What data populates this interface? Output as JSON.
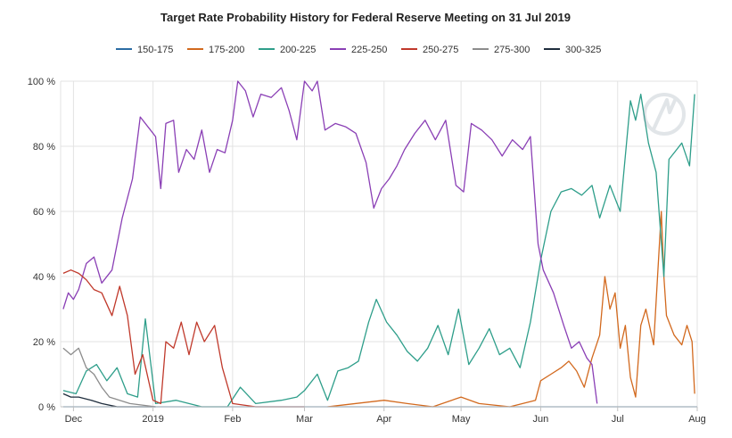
{
  "chart_data": {
    "type": "line",
    "title": "Target Rate Probability History for Federal Reserve Meeting on 31 Jul 2019",
    "xlabel": "",
    "ylabel": "",
    "ylim": [
      0,
      100
    ],
    "y_ticks": [
      "0 %",
      "20 %",
      "40 %",
      "60 %",
      "80 %",
      "100 %"
    ],
    "y_tick_values": [
      0,
      20,
      40,
      60,
      80,
      100
    ],
    "xlim": [
      "2018-11-26",
      "2019-08-01"
    ],
    "x_ticks": [
      {
        "label": "Dec",
        "date": "2018-12-01"
      },
      {
        "label": "2019",
        "date": "2019-01-01"
      },
      {
        "label": "Feb",
        "date": "2019-02-01"
      },
      {
        "label": "Mar",
        "date": "2019-03-01"
      },
      {
        "label": "Apr",
        "date": "2019-04-01"
      },
      {
        "label": "May",
        "date": "2019-05-01"
      },
      {
        "label": "Jun",
        "date": "2019-06-01"
      },
      {
        "label": "Jul",
        "date": "2019-07-01"
      },
      {
        "label": "Aug",
        "date": "2019-08-01"
      }
    ],
    "legend_position": "top",
    "grid": true,
    "series": [
      {
        "name": "150-175",
        "color": "#2b6ca3",
        "points": [
          [
            "2018-11-27",
            0
          ],
          [
            "2019-03-01",
            0
          ],
          [
            "2019-06-20",
            0
          ],
          [
            "2019-08-01",
            0
          ]
        ]
      },
      {
        "name": "175-200",
        "color": "#d2691e",
        "points": [
          [
            "2019-03-10",
            0
          ],
          [
            "2019-04-01",
            2
          ],
          [
            "2019-04-10",
            1
          ],
          [
            "2019-04-20",
            0
          ],
          [
            "2019-05-01",
            3
          ],
          [
            "2019-05-08",
            1
          ],
          [
            "2019-05-20",
            0
          ],
          [
            "2019-05-30",
            2
          ],
          [
            "2019-06-01",
            8
          ],
          [
            "2019-06-05",
            10
          ],
          [
            "2019-06-09",
            12
          ],
          [
            "2019-06-12",
            14
          ],
          [
            "2019-06-15",
            11
          ],
          [
            "2019-06-18",
            6
          ],
          [
            "2019-06-21",
            15
          ],
          [
            "2019-06-24",
            22
          ],
          [
            "2019-06-26",
            40
          ],
          [
            "2019-06-28",
            30
          ],
          [
            "2019-06-30",
            35
          ],
          [
            "2019-07-02",
            18
          ],
          [
            "2019-07-04",
            25
          ],
          [
            "2019-07-06",
            9
          ],
          [
            "2019-07-08",
            3
          ],
          [
            "2019-07-10",
            25
          ],
          [
            "2019-07-12",
            30
          ],
          [
            "2019-07-15",
            19
          ],
          [
            "2019-07-18",
            60
          ],
          [
            "2019-07-19",
            40
          ],
          [
            "2019-07-20",
            28
          ],
          [
            "2019-07-23",
            22
          ],
          [
            "2019-07-26",
            19
          ],
          [
            "2019-07-28",
            25
          ],
          [
            "2019-07-30",
            20
          ],
          [
            "2019-07-31",
            4
          ]
        ]
      },
      {
        "name": "200-225",
        "color": "#2e9e8a",
        "points": [
          [
            "2018-11-27",
            5
          ],
          [
            "2018-12-02",
            4
          ],
          [
            "2018-12-06",
            11
          ],
          [
            "2018-12-10",
            13
          ],
          [
            "2018-12-14",
            8
          ],
          [
            "2018-12-18",
            12
          ],
          [
            "2018-12-22",
            4
          ],
          [
            "2018-12-26",
            3
          ],
          [
            "2018-12-29",
            27
          ],
          [
            "2019-01-02",
            1
          ],
          [
            "2019-01-10",
            2
          ],
          [
            "2019-01-20",
            0
          ],
          [
            "2019-01-30",
            0
          ],
          [
            "2019-02-04",
            6
          ],
          [
            "2019-02-10",
            1
          ],
          [
            "2019-02-20",
            2
          ],
          [
            "2019-02-26",
            3
          ],
          [
            "2019-03-01",
            5
          ],
          [
            "2019-03-06",
            10
          ],
          [
            "2019-03-10",
            2
          ],
          [
            "2019-03-14",
            11
          ],
          [
            "2019-03-18",
            12
          ],
          [
            "2019-03-22",
            14
          ],
          [
            "2019-03-26",
            26
          ],
          [
            "2019-03-29",
            33
          ],
          [
            "2019-04-02",
            26
          ],
          [
            "2019-04-06",
            22
          ],
          [
            "2019-04-10",
            17
          ],
          [
            "2019-04-14",
            14
          ],
          [
            "2019-04-18",
            18
          ],
          [
            "2019-04-22",
            25
          ],
          [
            "2019-04-26",
            16
          ],
          [
            "2019-04-30",
            30
          ],
          [
            "2019-05-04",
            13
          ],
          [
            "2019-05-08",
            18
          ],
          [
            "2019-05-12",
            24
          ],
          [
            "2019-05-16",
            16
          ],
          [
            "2019-05-20",
            18
          ],
          [
            "2019-05-24",
            12
          ],
          [
            "2019-05-28",
            26
          ],
          [
            "2019-06-01",
            45
          ],
          [
            "2019-06-05",
            60
          ],
          [
            "2019-06-09",
            66
          ],
          [
            "2019-06-13",
            67
          ],
          [
            "2019-06-17",
            65
          ],
          [
            "2019-06-21",
            68
          ],
          [
            "2019-06-24",
            58
          ],
          [
            "2019-06-28",
            68
          ],
          [
            "2019-07-02",
            60
          ],
          [
            "2019-07-06",
            94
          ],
          [
            "2019-07-08",
            88
          ],
          [
            "2019-07-10",
            96
          ],
          [
            "2019-07-13",
            81
          ],
          [
            "2019-07-16",
            72
          ],
          [
            "2019-07-19",
            40
          ],
          [
            "2019-07-21",
            76
          ],
          [
            "2019-07-24",
            79
          ],
          [
            "2019-07-26",
            81
          ],
          [
            "2019-07-29",
            74
          ],
          [
            "2019-07-31",
            96
          ]
        ]
      },
      {
        "name": "225-250",
        "color": "#8a3fb5",
        "points": [
          [
            "2018-11-27",
            30
          ],
          [
            "2018-11-29",
            35
          ],
          [
            "2018-12-01",
            33
          ],
          [
            "2018-12-03",
            36
          ],
          [
            "2018-12-06",
            44
          ],
          [
            "2018-12-09",
            46
          ],
          [
            "2018-12-12",
            38
          ],
          [
            "2018-12-16",
            42
          ],
          [
            "2018-12-20",
            58
          ],
          [
            "2018-12-24",
            70
          ],
          [
            "2018-12-27",
            89
          ],
          [
            "2018-12-31",
            85
          ],
          [
            "2019-01-02",
            83
          ],
          [
            "2019-01-04",
            67
          ],
          [
            "2019-01-06",
            87
          ],
          [
            "2019-01-09",
            88
          ],
          [
            "2019-01-11",
            72
          ],
          [
            "2019-01-14",
            79
          ],
          [
            "2019-01-17",
            76
          ],
          [
            "2019-01-20",
            85
          ],
          [
            "2019-01-23",
            72
          ],
          [
            "2019-01-26",
            79
          ],
          [
            "2019-01-29",
            78
          ],
          [
            "2019-02-01",
            88
          ],
          [
            "2019-02-03",
            100
          ],
          [
            "2019-02-06",
            97
          ],
          [
            "2019-02-09",
            89
          ],
          [
            "2019-02-12",
            96
          ],
          [
            "2019-02-16",
            95
          ],
          [
            "2019-02-20",
            98
          ],
          [
            "2019-02-23",
            91
          ],
          [
            "2019-02-26",
            82
          ],
          [
            "2019-03-01",
            100
          ],
          [
            "2019-03-04",
            97
          ],
          [
            "2019-03-06",
            100
          ],
          [
            "2019-03-09",
            85
          ],
          [
            "2019-03-13",
            87
          ],
          [
            "2019-03-17",
            86
          ],
          [
            "2019-03-21",
            84
          ],
          [
            "2019-03-25",
            75
          ],
          [
            "2019-03-28",
            61
          ],
          [
            "2019-03-31",
            67
          ],
          [
            "2019-04-03",
            70
          ],
          [
            "2019-04-06",
            74
          ],
          [
            "2019-04-09",
            79
          ],
          [
            "2019-04-13",
            84
          ],
          [
            "2019-04-17",
            88
          ],
          [
            "2019-04-21",
            82
          ],
          [
            "2019-04-25",
            88
          ],
          [
            "2019-04-29",
            68
          ],
          [
            "2019-05-02",
            66
          ],
          [
            "2019-05-05",
            87
          ],
          [
            "2019-05-09",
            85
          ],
          [
            "2019-05-13",
            82
          ],
          [
            "2019-05-17",
            77
          ],
          [
            "2019-05-21",
            82
          ],
          [
            "2019-05-25",
            79
          ],
          [
            "2019-05-28",
            83
          ],
          [
            "2019-05-31",
            50
          ],
          [
            "2019-06-02",
            42
          ],
          [
            "2019-06-06",
            35
          ],
          [
            "2019-06-10",
            25
          ],
          [
            "2019-06-13",
            18
          ],
          [
            "2019-06-16",
            20
          ],
          [
            "2019-06-19",
            15
          ],
          [
            "2019-06-21",
            13
          ],
          [
            "2019-06-23",
            1
          ]
        ]
      },
      {
        "name": "250-275",
        "color": "#c0392b",
        "points": [
          [
            "2018-11-27",
            41
          ],
          [
            "2018-11-30",
            42
          ],
          [
            "2018-12-03",
            41
          ],
          [
            "2018-12-06",
            39
          ],
          [
            "2018-12-09",
            36
          ],
          [
            "2018-12-12",
            35
          ],
          [
            "2018-12-16",
            28
          ],
          [
            "2018-12-19",
            37
          ],
          [
            "2018-12-22",
            28
          ],
          [
            "2018-12-25",
            10
          ],
          [
            "2018-12-28",
            16
          ],
          [
            "2019-01-01",
            2
          ],
          [
            "2019-01-04",
            1
          ],
          [
            "2019-01-06",
            20
          ],
          [
            "2019-01-09",
            18
          ],
          [
            "2019-01-12",
            26
          ],
          [
            "2019-01-15",
            16
          ],
          [
            "2019-01-18",
            26
          ],
          [
            "2019-01-21",
            20
          ],
          [
            "2019-01-25",
            25
          ],
          [
            "2019-01-28",
            12
          ],
          [
            "2019-02-01",
            1
          ],
          [
            "2019-02-10",
            0
          ],
          [
            "2019-03-01",
            0
          ]
        ]
      },
      {
        "name": "275-300",
        "color": "#8c8c8c",
        "points": [
          [
            "2018-11-27",
            18
          ],
          [
            "2018-11-30",
            16
          ],
          [
            "2018-12-03",
            18
          ],
          [
            "2018-12-06",
            12
          ],
          [
            "2018-12-09",
            10
          ],
          [
            "2018-12-12",
            6
          ],
          [
            "2018-12-15",
            3
          ],
          [
            "2018-12-19",
            2
          ],
          [
            "2018-12-23",
            1
          ],
          [
            "2019-01-02",
            0
          ]
        ]
      },
      {
        "name": "300-325",
        "color": "#1f2d3d",
        "points": [
          [
            "2018-11-27",
            4
          ],
          [
            "2018-11-30",
            3
          ],
          [
            "2018-12-03",
            3
          ],
          [
            "2018-12-08",
            2
          ],
          [
            "2018-12-12",
            1
          ],
          [
            "2018-12-18",
            0
          ],
          [
            "2019-01-02",
            0
          ]
        ]
      }
    ]
  }
}
